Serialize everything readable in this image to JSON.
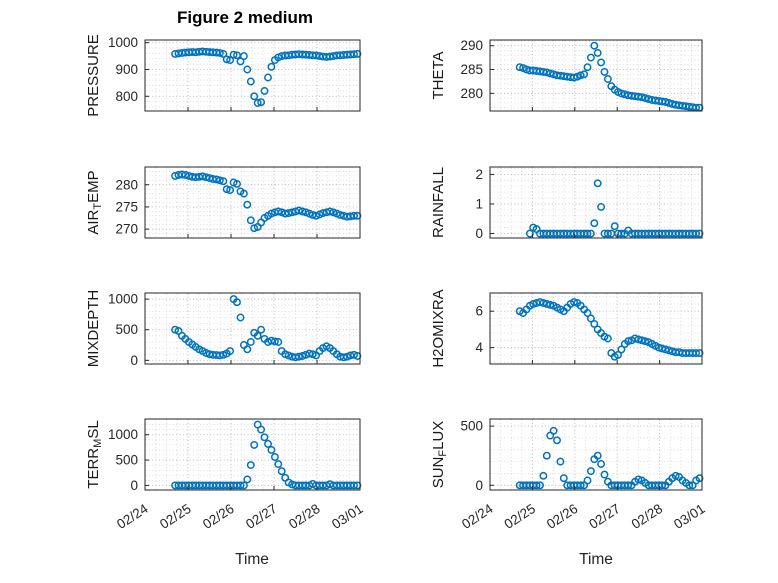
{
  "title": "Figure 2 medium",
  "xlabel": "Time",
  "x_tick_labels": [
    "02/24",
    "02/25",
    "02/26",
    "02/27",
    "02/28",
    "03/01"
  ],
  "x_range": [
    0,
    5
  ],
  "colors": {
    "marker": "#0072BD",
    "axis": "#262626",
    "grid_major": "#b4b4b4",
    "grid_minor": "#d4d4d4",
    "title": "#000000"
  },
  "x_days": [
    0.7,
    0.78,
    0.86,
    0.94,
    1.02,
    1.1,
    1.18,
    1.26,
    1.34,
    1.42,
    1.5,
    1.58,
    1.66,
    1.74,
    1.82,
    1.9,
    1.98,
    2.06,
    2.14,
    2.22,
    2.3,
    2.38,
    2.46,
    2.54,
    2.62,
    2.7,
    2.78,
    2.86,
    2.94,
    3.02,
    3.1,
    3.18,
    3.26,
    3.34,
    3.42,
    3.5,
    3.58,
    3.66,
    3.74,
    3.82,
    3.9,
    3.98,
    4.06,
    4.14,
    4.22,
    4.3,
    4.38,
    4.46,
    4.54,
    4.62,
    4.7,
    4.78,
    4.86,
    4.94
  ],
  "chart_data": [
    {
      "id": "pressure",
      "type": "scatter",
      "ylabel": "PRESSURE",
      "ylabel_parts": [
        [
          "PRESSURE",
          false
        ]
      ],
      "row": 0,
      "col": 0,
      "yticks": [
        800,
        900,
        1000
      ],
      "ylim": [
        745,
        1010
      ],
      "values": [
        958,
        960,
        962,
        963,
        964,
        965,
        964,
        966,
        967,
        966,
        965,
        964,
        963,
        962,
        958,
        938,
        935,
        955,
        953,
        930,
        950,
        900,
        855,
        800,
        775,
        778,
        820,
        870,
        910,
        935,
        945,
        950,
        952,
        953,
        955,
        956,
        957,
        956,
        955,
        954,
        953,
        952,
        950,
        948,
        947,
        948,
        950,
        952,
        953,
        954,
        955,
        956,
        957,
        958
      ]
    },
    {
      "id": "theta",
      "type": "scatter",
      "ylabel": "THETA",
      "ylabel_parts": [
        [
          "THETA",
          false
        ]
      ],
      "row": 0,
      "col": 1,
      "yticks": [
        280,
        285,
        290
      ],
      "ylim": [
        276.3,
        291.2
      ],
      "values": [
        285.5,
        285.3,
        285,
        284.8,
        284.8,
        284.7,
        284.6,
        284.5,
        284.4,
        284.2,
        284,
        283.8,
        283.7,
        283.6,
        283.5,
        283.4,
        283.3,
        283.5,
        283.8,
        284,
        285.5,
        287.5,
        290,
        288.5,
        286.5,
        284.5,
        283,
        281.5,
        280.8,
        280.3,
        280,
        279.8,
        279.6,
        279.5,
        279.4,
        279.3,
        279.2,
        279,
        278.8,
        278.6,
        278.5,
        278.4,
        278.3,
        278.2,
        278,
        277.8,
        277.6,
        277.5,
        277.4,
        277.3,
        277.2,
        277.1,
        277,
        277
      ]
    },
    {
      "id": "air-temp",
      "type": "scatter",
      "ylabel": "AIR_TEMP",
      "ylabel_parts": [
        [
          "AIR",
          false
        ],
        [
          "T",
          true
        ],
        [
          "EMP",
          false
        ]
      ],
      "row": 1,
      "col": 0,
      "yticks": [
        270,
        275,
        280
      ],
      "ylim": [
        268,
        284
      ],
      "values": [
        282,
        282.2,
        282.3,
        282.2,
        282,
        281.8,
        281.7,
        281.8,
        281.9,
        281.7,
        281.5,
        281.3,
        281.2,
        281,
        280.8,
        279,
        278.8,
        280.5,
        280.2,
        278.5,
        278,
        275.5,
        272,
        270.2,
        270.5,
        271.5,
        272.5,
        273,
        273.5,
        273.8,
        274,
        273.8,
        273.5,
        273.6,
        273.8,
        274,
        274.2,
        274,
        273.8,
        273.5,
        273.2,
        273,
        273.3,
        273.6,
        273.8,
        274,
        273.8,
        273.5,
        273.2,
        273,
        272.8,
        272.9,
        273,
        273
      ]
    },
    {
      "id": "rainfall",
      "type": "scatter",
      "ylabel": "RAINFALL",
      "ylabel_parts": [
        [
          "RAINFALL",
          false
        ]
      ],
      "row": 1,
      "col": 1,
      "yticks": [
        0,
        1,
        2
      ],
      "ylim": [
        -0.15,
        2.25
      ],
      "values": [
        null,
        null,
        null,
        0,
        0.2,
        0.15,
        0,
        0,
        0,
        0,
        0,
        0,
        0,
        0,
        0,
        0,
        0,
        0,
        0,
        0,
        0,
        0,
        0.35,
        1.7,
        0.9,
        0,
        0,
        0,
        0.25,
        0,
        0,
        0,
        0.1,
        0,
        0,
        0,
        0,
        0,
        0,
        0,
        0,
        0,
        0,
        0,
        0,
        0,
        0,
        0,
        0,
        0,
        0,
        0,
        0,
        0
      ]
    },
    {
      "id": "mixdepth",
      "type": "scatter",
      "ylabel": "MIXDEPTH",
      "ylabel_parts": [
        [
          "MIXDEPTH",
          false
        ]
      ],
      "row": 2,
      "col": 0,
      "yticks": [
        0,
        500,
        1000
      ],
      "ylim": [
        -60,
        1100
      ],
      "values": [
        500,
        480,
        400,
        350,
        300,
        260,
        220,
        180,
        150,
        120,
        100,
        90,
        85,
        80,
        90,
        110,
        150,
        1000,
        950,
        700,
        250,
        180,
        300,
        450,
        400,
        500,
        350,
        300,
        320,
        310,
        300,
        150,
        100,
        80,
        60,
        50,
        60,
        70,
        90,
        110,
        100,
        80,
        150,
        200,
        230,
        200,
        150,
        100,
        60,
        50,
        60,
        80,
        90,
        70
      ]
    },
    {
      "id": "h2omixra",
      "type": "scatter",
      "ylabel": "H2OMIXRA",
      "ylabel_parts": [
        [
          "H2OMIXRA",
          false
        ]
      ],
      "row": 2,
      "col": 1,
      "yticks": [
        4,
        6
      ],
      "ylim": [
        3.1,
        7
      ],
      "values": [
        6,
        5.9,
        6.1,
        6.3,
        6.4,
        6.45,
        6.5,
        6.45,
        6.4,
        6.35,
        6.3,
        6.2,
        6.1,
        6,
        6.2,
        6.4,
        6.5,
        6.45,
        6.3,
        6.1,
        5.9,
        5.6,
        5.3,
        5,
        4.8,
        4.6,
        4.5,
        3.7,
        3.5,
        3.6,
        3.9,
        4.2,
        4.35,
        4.4,
        4.5,
        4.45,
        4.4,
        4.35,
        4.3,
        4.2,
        4.1,
        4,
        3.95,
        3.9,
        3.85,
        3.8,
        3.75,
        3.75,
        3.7,
        3.7,
        3.7,
        3.7,
        3.7,
        3.7
      ]
    },
    {
      "id": "terr-msl",
      "type": "scatter",
      "ylabel": "TERR_MSL",
      "ylabel_parts": [
        [
          "TERR",
          false
        ],
        [
          "M",
          true
        ],
        [
          "SL",
          false
        ]
      ],
      "row": 3,
      "col": 0,
      "yticks": [
        0,
        500,
        1000
      ],
      "ylim": [
        -90,
        1310
      ],
      "values": [
        0,
        0,
        0,
        0,
        0,
        0,
        0,
        0,
        0,
        0,
        0,
        0,
        0,
        0,
        0,
        0,
        0,
        0,
        0,
        0,
        0,
        120,
        400,
        800,
        1200,
        1100,
        950,
        820,
        700,
        560,
        420,
        280,
        150,
        60,
        20,
        0,
        0,
        0,
        0,
        0,
        30,
        0,
        0,
        0,
        0,
        25,
        0,
        0,
        0,
        0,
        0,
        0,
        0,
        0
      ]
    },
    {
      "id": "sun-flux",
      "type": "scatter",
      "ylabel": "SUN_FLUX",
      "ylabel_parts": [
        [
          "SUN",
          false
        ],
        [
          "F",
          true
        ],
        [
          "LUX",
          false
        ]
      ],
      "row": 3,
      "col": 1,
      "yticks": [
        0,
        500
      ],
      "ylim": [
        -40,
        560
      ],
      "values": [
        0,
        0,
        0,
        0,
        0,
        0,
        0,
        80,
        250,
        420,
        460,
        380,
        200,
        60,
        0,
        0,
        0,
        0,
        0,
        0,
        40,
        120,
        220,
        250,
        180,
        90,
        30,
        0,
        0,
        0,
        0,
        0,
        0,
        0,
        30,
        50,
        40,
        20,
        0,
        0,
        0,
        0,
        0,
        0,
        30,
        60,
        80,
        70,
        40,
        20,
        0,
        0,
        40,
        60
      ]
    }
  ]
}
